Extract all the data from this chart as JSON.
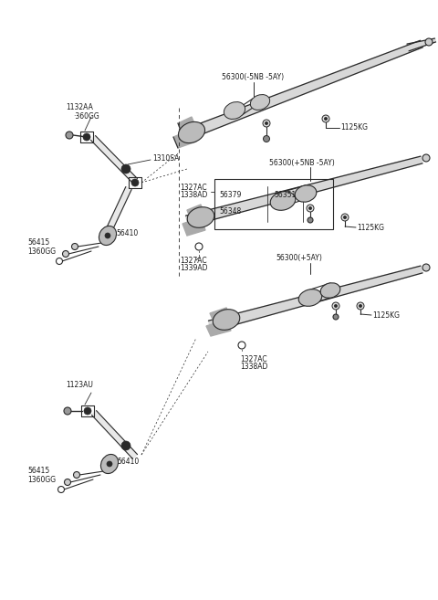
{
  "bg_color": "#ffffff",
  "line_color": "#2a2a2a",
  "text_color": "#1a1a1a",
  "fig_width": 4.8,
  "fig_height": 6.57,
  "dpi": 100,
  "fs": 6.0,
  "fs_small": 5.5,
  "labels": {
    "top_assy": "56300(-5NB -5AY)",
    "mid_assy": "56300(+5NB -5AY)",
    "bot_assy": "56300(+5AY)",
    "1125KG": "1125KG",
    "1132AA": "1132AA",
    "360GG": "·360GG",
    "1310SA": "1310SA",
    "56410": "56410",
    "56415": "56415",
    "1360GG": "1360GG",
    "1327AC": "1327AC",
    "1338AD": "1338AD",
    "1339AD": "1339AD",
    "56379": "56379",
    "56351": "56351",
    "56348": "56348",
    "1123AU": "1123AU",
    "56410b": "56410",
    "56415b": "56415",
    "1360GGb": "1360GG"
  }
}
